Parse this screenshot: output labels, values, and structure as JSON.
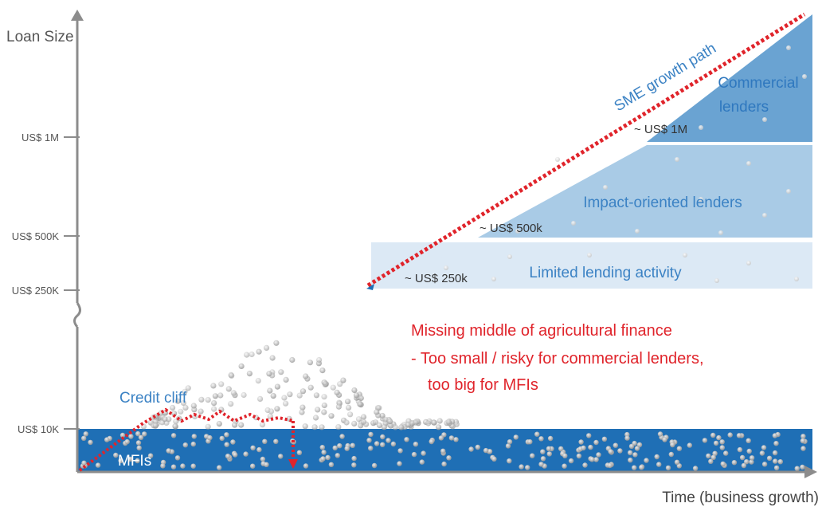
{
  "axes": {
    "y_label": "Loan Size",
    "x_label": "Time (business growth)",
    "ticks": [
      {
        "label": "US$ 1M",
        "name": "y-tick-1m"
      },
      {
        "label": "US$ 500K",
        "name": "y-tick-500k"
      },
      {
        "label": "US$ 250K",
        "name": "y-tick-250k"
      },
      {
        "label": "US$ 10K",
        "name": "y-tick-10k"
      }
    ]
  },
  "bands": {
    "commercial": {
      "label_line1": "Commercial",
      "label_line2": "lenders",
      "threshold": "~ US$ 1M"
    },
    "impact": {
      "label": "Impact-oriented lenders",
      "threshold": "~ US$ 500k"
    },
    "limited": {
      "label": "Limited lending activity",
      "threshold": "~ US$ 250k"
    },
    "mfi": {
      "label": "MFIs"
    }
  },
  "growth_path_label": "SME growth path",
  "credit_cliff_label": "Credit cliff",
  "missing_middle": {
    "title": "Missing middle of agricultural finance",
    "bullet_line1": "-  Too small / risky for commercial lenders,",
    "bullet_line2": "too big for MFIs"
  },
  "colors": {
    "commercial": "#6aa3d2",
    "impact": "#a9cbe6",
    "limited": "#dce9f5",
    "mfi": "#1f6fb5",
    "label_blue": "#3b82c4",
    "red": "#e0242b",
    "axis": "#8c8c8c"
  }
}
